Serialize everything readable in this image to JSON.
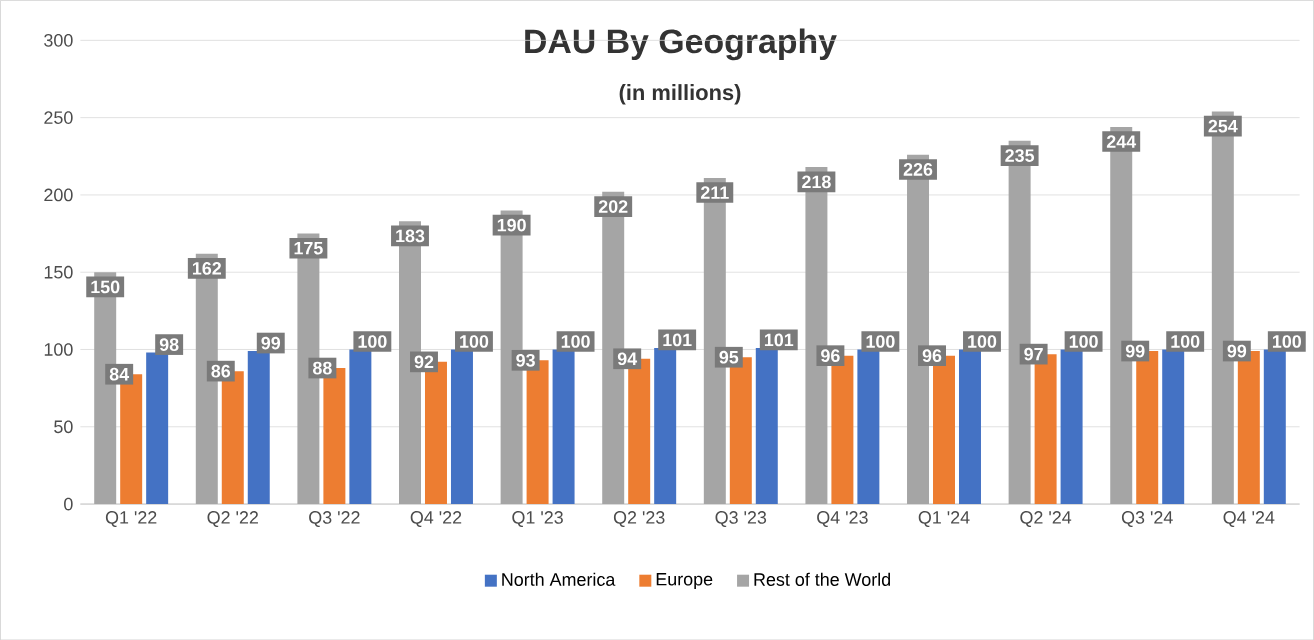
{
  "chart_data": {
    "type": "bar",
    "title": "DAU By Geography",
    "subtitle": "(in millions)",
    "categories": [
      "Q1 '22",
      "Q2 '22",
      "Q3 '22",
      "Q4 '22",
      "Q1 '23",
      "Q2 '23",
      "Q3 '23",
      "Q4 '23",
      "Q1 '24",
      "Q2 '24",
      "Q3 '24",
      "Q4 '24"
    ],
    "series": [
      {
        "name": "North America",
        "color": "#4472c4",
        "values": [
          98,
          99,
          100,
          100,
          100,
          101,
          101,
          100,
          100,
          100,
          100,
          100
        ]
      },
      {
        "name": "Europe",
        "color": "#ed7d31",
        "values": [
          84,
          86,
          88,
          92,
          93,
          94,
          95,
          96,
          96,
          97,
          99,
          99
        ]
      },
      {
        "name": "Rest of the World",
        "color": "#a5a5a5",
        "values": [
          150,
          162,
          175,
          183,
          190,
          202,
          211,
          218,
          226,
          235,
          244,
          254
        ]
      }
    ],
    "ylim": [
      0,
      300
    ],
    "yticks": [
      0,
      50,
      100,
      150,
      200,
      250,
      300
    ],
    "grid": "y",
    "legend": "bottom",
    "data_labels": true
  }
}
